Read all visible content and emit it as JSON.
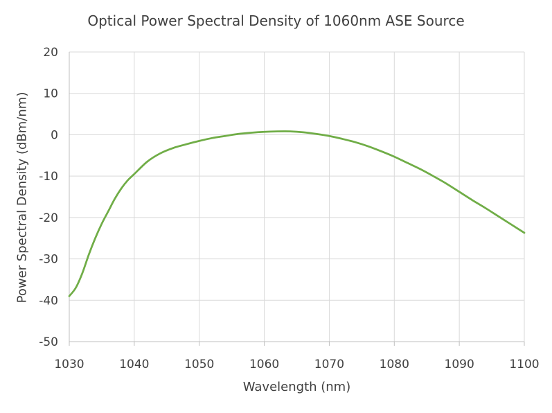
{
  "chart_data": {
    "type": "line",
    "title": "Optical Power Spectral Density of 1060nm ASE Source",
    "xlabel": "Wavelength (nm)",
    "ylabel": "Power Spectral Density (dBm/nm)",
    "xlim": [
      1030,
      1100
    ],
    "ylim": [
      -50,
      20
    ],
    "xticks": [
      "1030",
      "1040",
      "1050",
      "1060",
      "1070",
      "1080",
      "1090",
      "1100"
    ],
    "yticks": [
      "20",
      "10",
      "0",
      "-10",
      "-20",
      "-30",
      "-40",
      "-50"
    ],
    "grid": true,
    "legend": "none",
    "series": [
      {
        "color": "#70ad47",
        "x": [
          1030,
          1031,
          1032,
          1033,
          1034,
          1035,
          1036,
          1037,
          1038,
          1039,
          1040,
          1042,
          1044,
          1046,
          1048,
          1050,
          1052,
          1054,
          1056,
          1058,
          1060,
          1062,
          1064,
          1066,
          1068,
          1070,
          1072,
          1074,
          1076,
          1078,
          1080,
          1082,
          1084,
          1086,
          1088,
          1090,
          1092,
          1094,
          1096,
          1098,
          1100
        ],
        "y": [
          -39,
          -37,
          -33.5,
          -29,
          -25,
          -21.5,
          -18.5,
          -15.5,
          -13,
          -11,
          -9.5,
          -6.5,
          -4.5,
          -3.2,
          -2.3,
          -1.5,
          -0.8,
          -0.3,
          0.2,
          0.5,
          0.7,
          0.8,
          0.8,
          0.6,
          0.2,
          -0.3,
          -1,
          -1.8,
          -2.8,
          -4,
          -5.3,
          -6.8,
          -8.3,
          -10,
          -11.8,
          -13.8,
          -15.8,
          -17.7,
          -19.7,
          -21.7,
          -23.7
        ]
      }
    ]
  }
}
